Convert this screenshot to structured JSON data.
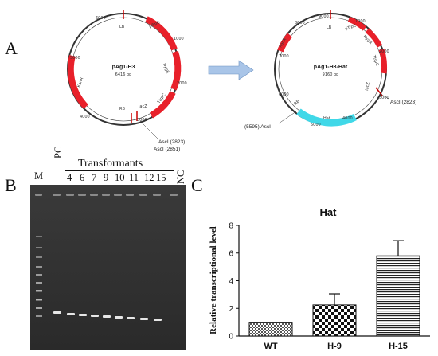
{
  "panels": {
    "a": "A",
    "b": "B",
    "c": "C"
  },
  "plasmid_left": {
    "name": "pAg1-H3",
    "size": "6416 bp",
    "features": [
      "LB",
      "pTrpC",
      "HygR",
      "TtrpC",
      "lacZ",
      "RB",
      "KanR"
    ],
    "sites": [
      "AscI (2823)",
      "AscI (2851)"
    ],
    "ticks": [
      "6000",
      "1000",
      "2000",
      "3000",
      "4000",
      "5000"
    ]
  },
  "plasmid_right": {
    "name": "pAg1-H3-Hat",
    "size": "9160 bp",
    "features": [
      "LB",
      "pTrpC",
      "HygR",
      "TtrpC",
      "lacZ",
      "RB",
      "Hat",
      "KanR"
    ],
    "sites": [
      "AscI (2823)",
      "(5595) AscI"
    ],
    "ticks": [
      "9000",
      "1000",
      "2000",
      "3000",
      "4000",
      "5000",
      "6000",
      "7000",
      "8000"
    ]
  },
  "gel": {
    "lanes": [
      "M",
      "PC",
      "4",
      "6",
      "7",
      "9",
      "10",
      "11",
      "12",
      "15",
      "NC"
    ],
    "group_label": "Transformants"
  },
  "colors": {
    "feature_red": "#e8202a",
    "hat_cyan": "#40d8e8",
    "arrow_fill": "#a9c5e8"
  },
  "chart_data": {
    "type": "bar",
    "title": "Hat",
    "ylabel": "Relative transcriptional level",
    "xlabel": "",
    "categories": [
      "WT",
      "H-9",
      "H-15"
    ],
    "values": [
      1.0,
      2.25,
      5.8
    ],
    "errors": [
      0,
      0.8,
      1.1
    ],
    "ylim": [
      0,
      8
    ],
    "yticks": [
      "0",
      "2",
      "4",
      "6",
      "8"
    ],
    "patterns": [
      "checker-fine",
      "checker-bold",
      "horizontal-stripes"
    ]
  }
}
